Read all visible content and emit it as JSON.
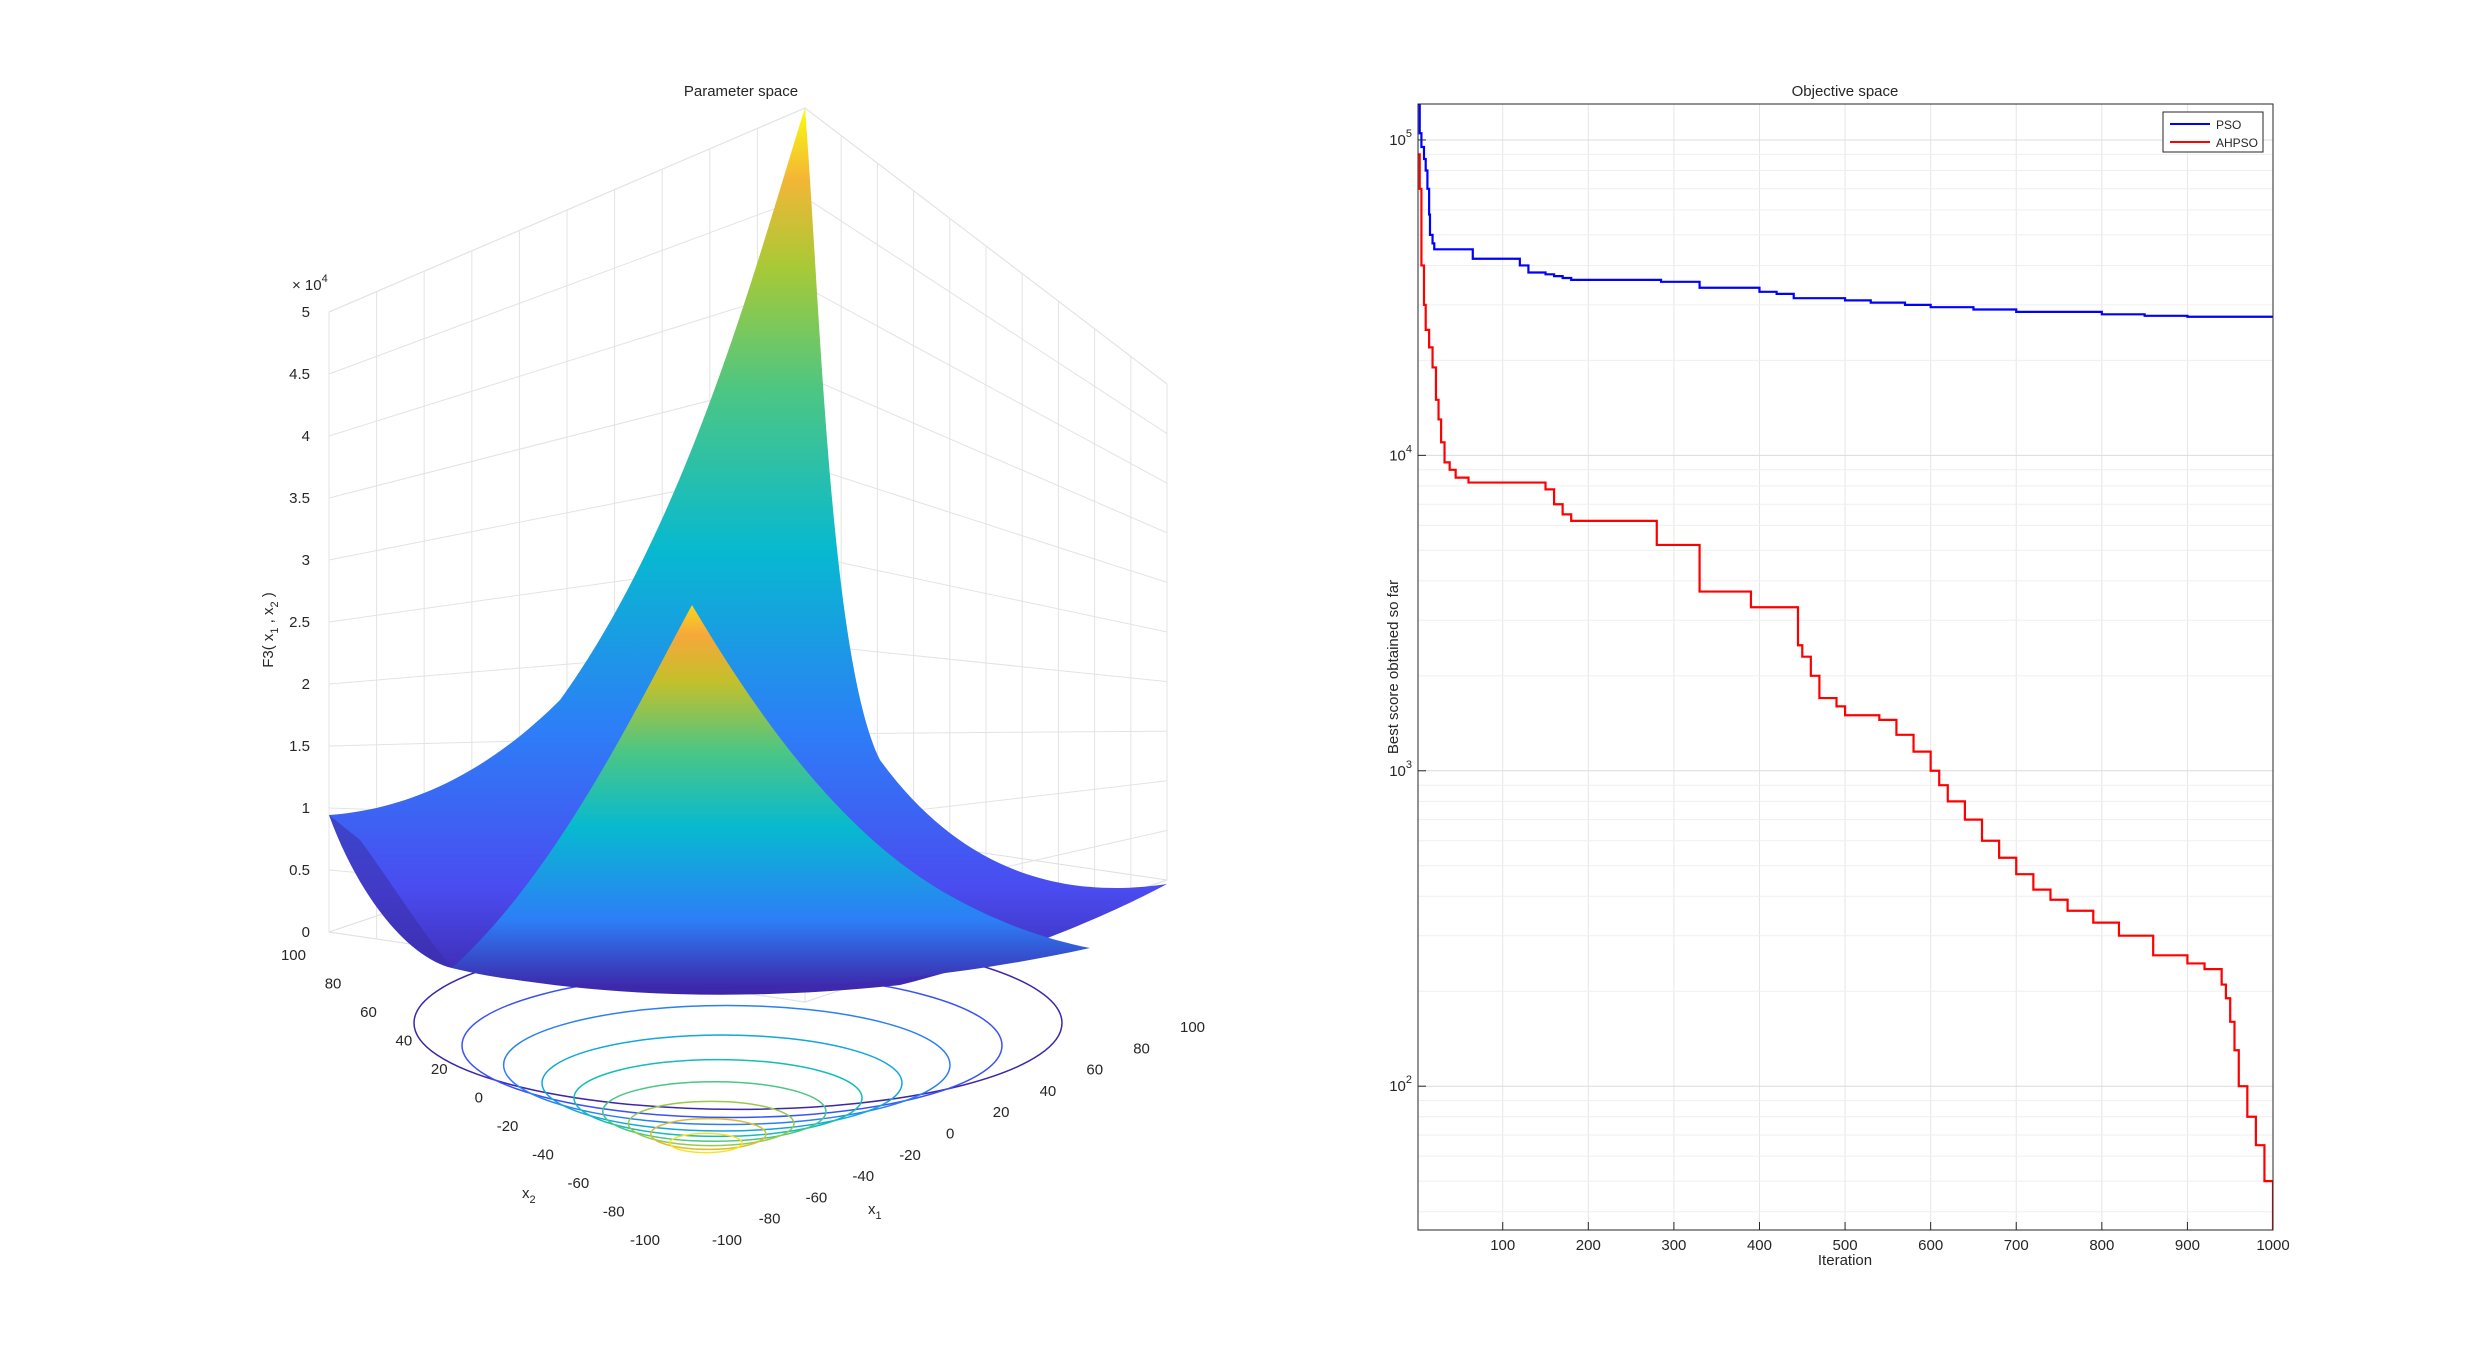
{
  "chart_data": [
    {
      "type": "surface",
      "title": "Parameter space",
      "xlabel": "x",
      "xlabel_sub": "1",
      "ylabel": "x",
      "ylabel_sub": "2",
      "zlabel": "F3( x",
      "zlabel_sub1": "1",
      "zlabel_mid": " , x",
      "zlabel_sub2": "2",
      "zlabel_end": " )",
      "z_exponent_base": "× 10",
      "z_exponent_power": "4",
      "x_ticks": [
        "-100",
        "-80",
        "-60",
        "-40",
        "-20",
        "0",
        "20",
        "40",
        "60",
        "80",
        "100"
      ],
      "y_ticks": [
        "-100",
        "-80",
        "-60",
        "-40",
        "-20",
        "0",
        "20",
        "40",
        "60",
        "80",
        "100"
      ],
      "z_ticks": [
        "0",
        "0.5",
        "1",
        "1.5",
        "2",
        "2.5",
        "3",
        "3.5",
        "4",
        "4.5",
        "5"
      ],
      "xlim": [
        -100,
        100
      ],
      "ylim": [
        -100,
        100
      ],
      "zlim": [
        0,
        50000
      ],
      "function": "(x1 + x2)^2 + x1^2",
      "grid": true,
      "colormap": "parula",
      "contour_below": true,
      "colors": {
        "low": "#3d26a8",
        "mid1": "#2d7ef7",
        "mid2": "#06bfbf",
        "mid3": "#a8c936",
        "high": "#f9fb0e"
      }
    },
    {
      "type": "line",
      "title": "Objective space",
      "xlabel": "Iteration",
      "ylabel": "Best score obtained so far",
      "y_scale": "log",
      "xlim": [
        1,
        1000
      ],
      "ylim": [
        35,
        130000
      ],
      "x_ticks": [
        "100",
        "200",
        "300",
        "400",
        "500",
        "600",
        "700",
        "800",
        "900",
        "1000"
      ],
      "y_ticks": [
        {
          "base": "10",
          "exp": "2",
          "value": 100
        },
        {
          "base": "10",
          "exp": "3",
          "value": 1000
        },
        {
          "base": "10",
          "exp": "4",
          "value": 10000
        },
        {
          "base": "10",
          "exp": "5",
          "value": 100000
        }
      ],
      "grid": true,
      "legend_position": "top-right",
      "series": [
        {
          "name": "PSO",
          "color": "#0000ff",
          "x": [
            1,
            3,
            5,
            8,
            10,
            12,
            14,
            15,
            18,
            20,
            60,
            65,
            120,
            130,
            150,
            160,
            170,
            180,
            280,
            285,
            330,
            400,
            420,
            440,
            500,
            530,
            570,
            600,
            650,
            700,
            780,
            800,
            850,
            900,
            1000
          ],
          "y": [
            130000,
            105000,
            95000,
            87000,
            80000,
            70000,
            58000,
            50000,
            47000,
            45000,
            45000,
            42000,
            40000,
            38000,
            37500,
            37000,
            36500,
            36000,
            36000,
            35500,
            34000,
            33000,
            32500,
            31500,
            31000,
            30500,
            30000,
            29500,
            29000,
            28500,
            28500,
            28000,
            27700,
            27500,
            27300
          ]
        },
        {
          "name": "AHPSO",
          "color": "#ff0000",
          "x": [
            1,
            3,
            5,
            8,
            10,
            14,
            18,
            22,
            25,
            28,
            32,
            38,
            45,
            60,
            70,
            140,
            150,
            160,
            170,
            180,
            270,
            280,
            320,
            330,
            380,
            390,
            440,
            445,
            450,
            460,
            470,
            490,
            500,
            540,
            560,
            580,
            600,
            610,
            620,
            640,
            660,
            680,
            700,
            720,
            740,
            760,
            790,
            820,
            860,
            900,
            920,
            940,
            945,
            950,
            955,
            960,
            970,
            980,
            990,
            1000
          ],
          "y": [
            90000,
            70000,
            40000,
            30000,
            25000,
            22000,
            19000,
            15000,
            13000,
            11000,
            9500,
            9000,
            8500,
            8200,
            8200,
            8200,
            7800,
            7000,
            6500,
            6200,
            6200,
            5200,
            5200,
            3700,
            3700,
            3300,
            3300,
            2500,
            2300,
            2000,
            1700,
            1600,
            1500,
            1450,
            1300,
            1150,
            1000,
            900,
            800,
            700,
            600,
            530,
            470,
            420,
            390,
            360,
            330,
            300,
            260,
            245,
            235,
            210,
            190,
            160,
            130,
            100,
            80,
            65,
            50,
            35
          ]
        }
      ]
    }
  ]
}
